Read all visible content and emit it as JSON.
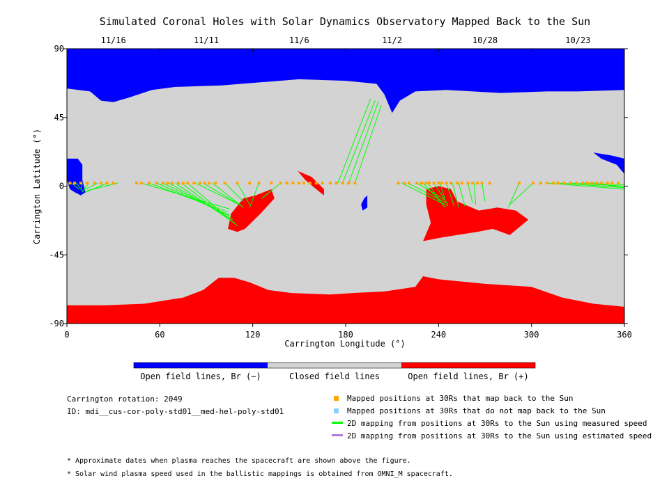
{
  "chart_data": {
    "type": "map",
    "title": "Simulated Coronal Holes with Solar Dynamics Observatory Mapped Back to the Sun",
    "xlabel": "Carrington Longitude (°)",
    "ylabel": "Carrington Latitude (°)",
    "xlim": [
      0,
      360
    ],
    "ylim": [
      -90,
      90
    ],
    "x_ticks": [
      0,
      60,
      120,
      180,
      240,
      300,
      360
    ],
    "y_ticks": [
      90,
      45,
      0,
      -45,
      -90
    ],
    "y_tick_labels": [
      "90",
      "45",
      "0",
      "-45",
      "-90"
    ],
    "top_axis_dates": [
      {
        "label": "11/16",
        "lon": 30
      },
      {
        "label": "11/11",
        "lon": 90
      },
      {
        "label": "11/6",
        "lon": 150
      },
      {
        "label": "11/2",
        "lon": 210
      },
      {
        "label": "10/28",
        "lon": 270
      },
      {
        "label": "10/23",
        "lon": 330
      }
    ],
    "colors": {
      "open_negative": "#0000ff",
      "closed": "#d3d3d3",
      "open_positive": "#ff0000",
      "mapped_point": "#ffa500",
      "unmapped_point": "#87cefa",
      "measured_line": "#00ff00",
      "estimated_line": "#b07ae0"
    },
    "regions": {
      "north_boundary": [
        [
          0,
          64
        ],
        [
          15,
          62
        ],
        [
          22,
          56
        ],
        [
          30,
          55
        ],
        [
          40,
          58
        ],
        [
          55,
          63
        ],
        [
          70,
          65
        ],
        [
          100,
          66
        ],
        [
          125,
          68
        ],
        [
          150,
          70
        ],
        [
          180,
          69
        ],
        [
          200,
          67
        ],
        [
          205,
          60
        ],
        [
          210,
          48
        ],
        [
          215,
          56
        ],
        [
          225,
          62
        ],
        [
          245,
          63
        ],
        [
          280,
          61
        ],
        [
          310,
          62
        ],
        [
          330,
          62
        ],
        [
          360,
          63
        ]
      ],
      "south_boundary": [
        [
          0,
          -78
        ],
        [
          25,
          -78
        ],
        [
          50,
          -77
        ],
        [
          75,
          -73
        ],
        [
          88,
          -68
        ],
        [
          98,
          -60
        ],
        [
          108,
          -60
        ],
        [
          118,
          -63
        ],
        [
          130,
          -68
        ],
        [
          145,
          -70
        ],
        [
          170,
          -71
        ],
        [
          185,
          -70
        ],
        [
          205,
          -69
        ],
        [
          225,
          -66
        ],
        [
          230,
          -59
        ],
        [
          240,
          -61
        ],
        [
          270,
          -64
        ],
        [
          300,
          -66
        ],
        [
          320,
          -73
        ],
        [
          340,
          -77
        ],
        [
          360,
          -79
        ]
      ],
      "negative_holes": [
        [
          [
            0,
            18
          ],
          [
            7,
            18
          ],
          [
            10,
            14
          ],
          [
            10,
            4
          ],
          [
            12,
            -4
          ],
          [
            9,
            -6
          ],
          [
            5,
            -4
          ],
          [
            2,
            -2
          ],
          [
            0,
            4
          ]
        ],
        [
          [
            340,
            22
          ],
          [
            352,
            20
          ],
          [
            360,
            18
          ],
          [
            360,
            8
          ],
          [
            355,
            14
          ],
          [
            345,
            18
          ]
        ],
        [
          [
            192,
            -8
          ],
          [
            194,
            -6
          ],
          [
            194,
            -14
          ],
          [
            191,
            -16
          ],
          [
            190,
            -12
          ]
        ]
      ],
      "positive_holes": [
        [
          [
            122,
            -6
          ],
          [
            132,
            -2
          ],
          [
            134,
            -8
          ],
          [
            125,
            -18
          ],
          [
            115,
            -28
          ],
          [
            110,
            -30
          ],
          [
            104,
            -28
          ],
          [
            106,
            -18
          ],
          [
            114,
            -8
          ]
        ],
        [
          [
            149,
            10
          ],
          [
            158,
            6
          ],
          [
            166,
            -2
          ],
          [
            166,
            -6
          ],
          [
            161,
            -2
          ],
          [
            154,
            4
          ]
        ],
        [
          [
            232,
            -2
          ],
          [
            240,
            0
          ],
          [
            248,
            -2
          ],
          [
            252,
            -10
          ],
          [
            266,
            -16
          ],
          [
            278,
            -14
          ],
          [
            290,
            -16
          ],
          [
            298,
            -22
          ],
          [
            286,
            -32
          ],
          [
            275,
            -28
          ],
          [
            265,
            -30
          ],
          [
            252,
            -32
          ],
          [
            240,
            -34
          ],
          [
            230,
            -36
          ],
          [
            235,
            -24
          ],
          [
            232,
            -12
          ]
        ]
      ]
    },
    "spacecraft_points": [
      [
        2,
        2
      ],
      [
        5,
        2
      ],
      [
        9,
        2
      ],
      [
        13,
        2
      ],
      [
        18,
        2
      ],
      [
        22,
        2
      ],
      [
        26,
        2
      ],
      [
        30,
        2
      ],
      [
        45,
        2
      ],
      [
        48,
        2
      ],
      [
        53,
        2
      ],
      [
        58,
        2
      ],
      [
        62,
        2
      ],
      [
        65,
        2
      ],
      [
        68,
        2
      ],
      [
        72,
        2
      ],
      [
        75,
        2
      ],
      [
        78,
        2
      ],
      [
        82,
        2
      ],
      [
        86,
        2
      ],
      [
        89,
        2
      ],
      [
        92,
        2
      ],
      [
        96,
        2
      ],
      [
        102,
        2
      ],
      [
        110,
        2
      ],
      [
        118,
        2
      ],
      [
        124,
        2
      ],
      [
        132,
        2
      ],
      [
        138,
        2
      ],
      [
        142,
        2
      ],
      [
        146,
        2
      ],
      [
        150,
        2
      ],
      [
        153,
        2
      ],
      [
        157,
        2
      ],
      [
        161,
        2
      ],
      [
        165,
        2
      ],
      [
        170,
        2
      ],
      [
        174,
        2
      ],
      [
        178,
        2
      ],
      [
        182,
        2
      ],
      [
        186,
        2
      ],
      [
        214,
        2
      ],
      [
        218,
        2
      ],
      [
        221,
        2
      ],
      [
        226,
        2
      ],
      [
        229,
        2
      ],
      [
        232,
        2
      ],
      [
        234,
        2
      ],
      [
        237,
        2
      ],
      [
        240,
        2
      ],
      [
        242,
        2
      ],
      [
        245,
        2
      ],
      [
        248,
        2
      ],
      [
        252,
        2
      ],
      [
        255,
        2
      ],
      [
        259,
        2
      ],
      [
        262,
        2
      ],
      [
        265,
        2
      ],
      [
        268,
        2
      ],
      [
        273,
        2
      ],
      [
        292,
        2
      ],
      [
        301,
        2
      ],
      [
        306,
        2
      ],
      [
        310,
        2
      ],
      [
        314,
        2
      ],
      [
        317,
        2
      ],
      [
        321,
        2
      ],
      [
        325,
        2
      ],
      [
        329,
        2
      ],
      [
        333,
        2
      ],
      [
        336,
        2
      ],
      [
        339,
        2
      ],
      [
        342,
        2
      ],
      [
        345,
        2
      ],
      [
        349,
        2
      ],
      [
        352,
        2
      ],
      [
        356,
        2
      ]
    ],
    "mapping_lines": [
      [
        [
          3,
          2
        ],
        [
          8,
          -2
        ]
      ],
      [
        [
          6,
          2
        ],
        [
          10,
          -3
        ]
      ],
      [
        [
          10,
          2
        ],
        [
          9,
          -2
        ]
      ],
      [
        [
          14,
          2
        ],
        [
          10,
          -4
        ]
      ],
      [
        [
          20,
          2
        ],
        [
          10,
          -3
        ]
      ],
      [
        [
          26,
          2
        ],
        [
          12,
          -4
        ]
      ],
      [
        [
          33,
          2
        ],
        [
          13,
          -3
        ]
      ],
      [
        [
          48,
          2
        ],
        [
          105,
          -15
        ]
      ],
      [
        [
          53,
          2
        ],
        [
          104,
          -17
        ]
      ],
      [
        [
          58,
          2
        ],
        [
          105,
          -19
        ]
      ],
      [
        [
          62,
          2
        ],
        [
          106,
          -20
        ]
      ],
      [
        [
          66,
          2
        ],
        [
          107,
          -22
        ]
      ],
      [
        [
          70,
          2
        ],
        [
          108,
          -24
        ]
      ],
      [
        [
          74,
          2
        ],
        [
          109,
          -25
        ]
      ],
      [
        [
          78,
          2
        ],
        [
          110,
          -26
        ]
      ],
      [
        [
          83,
          2
        ],
        [
          111,
          -12
        ]
      ],
      [
        [
          88,
          2
        ],
        [
          113,
          -13
        ]
      ],
      [
        [
          94,
          2
        ],
        [
          114,
          -14
        ]
      ],
      [
        [
          102,
          2
        ],
        [
          114,
          -10
        ]
      ],
      [
        [
          110,
          2
        ],
        [
          118,
          -12
        ]
      ],
      [
        [
          124,
          2
        ],
        [
          118,
          -14
        ]
      ],
      [
        [
          138,
          2
        ],
        [
          126,
          -8
        ]
      ],
      [
        [
          175,
          2
        ],
        [
          196,
          57
        ]
      ],
      [
        [
          178,
          2
        ],
        [
          199,
          56
        ]
      ],
      [
        [
          182,
          2
        ],
        [
          201,
          55
        ]
      ],
      [
        [
          186,
          2
        ],
        [
          203,
          53
        ]
      ],
      [
        [
          216,
          2
        ],
        [
          246,
          -13
        ]
      ],
      [
        [
          220,
          2
        ],
        [
          245,
          -11
        ]
      ],
      [
        [
          226,
          2
        ],
        [
          244,
          -9
        ]
      ],
      [
        [
          230,
          2
        ],
        [
          243,
          -12
        ]
      ],
      [
        [
          233,
          2
        ],
        [
          244,
          -14
        ]
      ],
      [
        [
          237,
          2
        ],
        [
          246,
          -12
        ]
      ],
      [
        [
          241,
          2
        ],
        [
          244,
          -8
        ]
      ],
      [
        [
          245,
          2
        ],
        [
          250,
          -13
        ]
      ],
      [
        [
          249,
          2
        ],
        [
          253,
          -14
        ]
      ],
      [
        [
          253,
          2
        ],
        [
          257,
          -13
        ]
      ],
      [
        [
          259,
          2
        ],
        [
          262,
          -11
        ]
      ],
      [
        [
          263,
          2
        ],
        [
          264,
          -12
        ]
      ],
      [
        [
          268,
          2
        ],
        [
          270,
          -10
        ]
      ],
      [
        [
          292,
          2
        ],
        [
          285,
          -14
        ]
      ],
      [
        [
          301,
          2
        ],
        [
          286,
          -12
        ]
      ],
      [
        [
          310,
          2
        ],
        [
          360,
          -2
        ]
      ],
      [
        [
          318,
          2
        ],
        [
          360,
          -1
        ]
      ],
      [
        [
          325,
          2
        ],
        [
          360,
          0
        ]
      ],
      [
        [
          332,
          2
        ],
        [
          360,
          1
        ]
      ],
      [
        [
          340,
          2
        ],
        [
          360,
          -1
        ]
      ]
    ],
    "legend_colorbar": [
      {
        "label": "Open field lines, Br (−)",
        "color": "#0000ff"
      },
      {
        "label": "Closed field lines",
        "color": "#d3d3d3"
      },
      {
        "label": "Open field lines, Br (+)",
        "color": "#ff0000"
      }
    ]
  },
  "info": {
    "rotation": "Carrington rotation: 2049",
    "id": "ID: mdi__cus-cor-poly-std01__med-hel-poly-std01"
  },
  "legend": {
    "mapped": "Mapped positions at 30Rs that map back to the Sun",
    "unmapped": "Mapped positions at 30Rs that do not map back to the Sun",
    "measured": "2D mapping from positions at 30Rs to the Sun using measured speed",
    "estimated": "2D mapping from positions at 30Rs to the Sun using estimated speed"
  },
  "notes": {
    "dates": "* Approximate dates when plasma reaches the spacecraft are shown above the figure.",
    "omni": "* Solar wind plasma speed used in the ballistic mappings is obtained from OMNI_M spacecraft."
  }
}
